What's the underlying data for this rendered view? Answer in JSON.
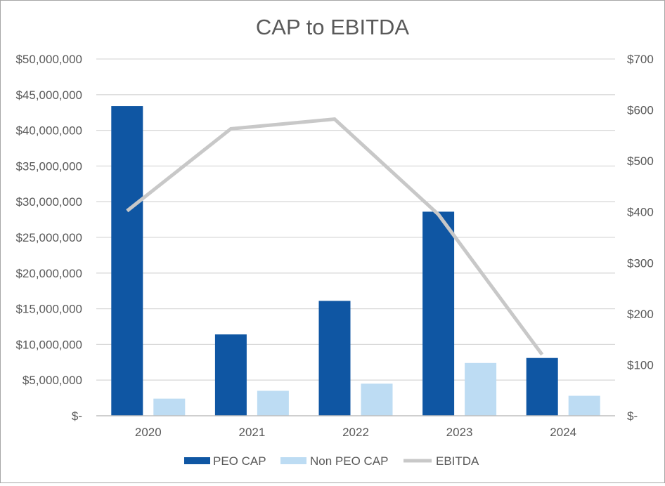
{
  "chart_data": {
    "type": "bar",
    "title": "CAP to EBITDA",
    "categories": [
      "2020",
      "2021",
      "2022",
      "2023",
      "2024"
    ],
    "series": [
      {
        "name": "PEO CAP",
        "kind": "bar",
        "axis": "left",
        "color": "#0f56a3",
        "values": [
          43400000,
          11400000,
          16100000,
          28600000,
          8100000
        ]
      },
      {
        "name": "Non PEO CAP",
        "kind": "bar",
        "axis": "left",
        "color": "#bddcf3",
        "values": [
          2400000,
          3500000,
          4500000,
          7400000,
          2800000
        ]
      },
      {
        "name": "EBITDA",
        "kind": "line",
        "axis": "right",
        "color": "#c8c8c8",
        "values": [
          402,
          563,
          582,
          395,
          120
        ]
      }
    ],
    "y_left": {
      "ylim": [
        0,
        50000000
      ],
      "ticks": [
        0,
        5000000,
        10000000,
        15000000,
        20000000,
        25000000,
        30000000,
        35000000,
        40000000,
        45000000,
        50000000
      ],
      "tick_labels": [
        "$-",
        "$5,000,000",
        "$10,000,000",
        "$15,000,000",
        "$20,000,000",
        "$25,000,000",
        "$30,000,000",
        "$35,000,000",
        "$40,000,000",
        "$45,000,000",
        "$50,000,000"
      ]
    },
    "y_right": {
      "ylim": [
        0,
        700
      ],
      "ticks": [
        0,
        100,
        200,
        300,
        400,
        500,
        600,
        700
      ],
      "tick_labels": [
        "$-",
        "$100",
        "$200",
        "$300",
        "$400",
        "$500",
        "$600",
        "$700"
      ]
    },
    "grid": true,
    "legend": "bottom-center",
    "gridline_color": "#d9d9d9",
    "axis_line_color": "#bfbfbf",
    "text_color": "#595959"
  }
}
